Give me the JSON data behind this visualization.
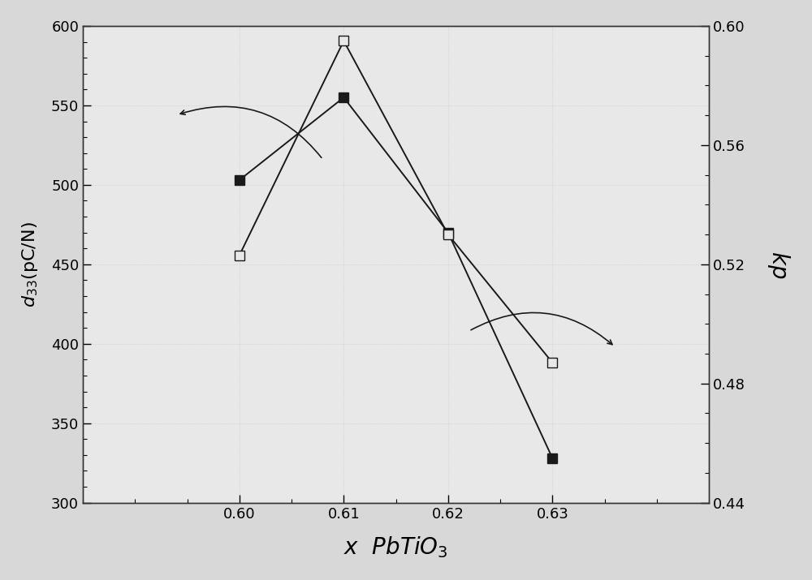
{
  "x": [
    0.6,
    0.61,
    0.62,
    0.63
  ],
  "d33": [
    503,
    555,
    470,
    328
  ],
  "kp": [
    0.523,
    0.595,
    0.53,
    0.487
  ],
  "xlabel": "x  PbTiO$_3$",
  "ylabel_left": "$d_{33}$(pC/N)",
  "ylabel_right": "$k$p",
  "ylim_left": [
    300,
    600
  ],
  "ylim_right": [
    0.44,
    0.6
  ],
  "xlim": [
    0.585,
    0.645
  ],
  "xticks": [
    0.6,
    0.61,
    0.62,
    0.63
  ],
  "yticks_left": [
    300,
    350,
    400,
    450,
    500,
    550,
    600
  ],
  "yticks_right": [
    0.44,
    0.48,
    0.52,
    0.56,
    0.6
  ],
  "bg_color": "#d8d8d8",
  "plot_bg_color": "#e8e8e8",
  "line_color": "#1a1a1a",
  "marker_filled_color": "#1a1a1a",
  "marker_open_color": "#e8e8e8",
  "marker_size": 9,
  "linewidth": 1.4
}
